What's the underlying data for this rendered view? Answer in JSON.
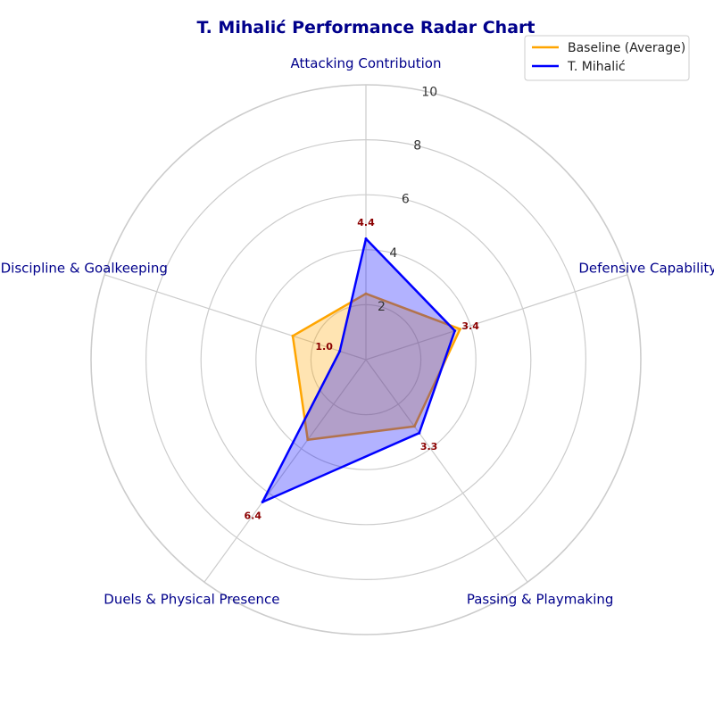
{
  "chart_data": {
    "type": "radar",
    "title": "T. Mihalić Performance Radar Chart",
    "axes": [
      "Attacking Contribution",
      "Defensive Capability",
      "Passing & Playmaking",
      "Duels & Physical Presence",
      "Discipline & Goalkeeping"
    ],
    "rlim": [
      0,
      10
    ],
    "radial_ticks": [
      2,
      4,
      6,
      8,
      10
    ],
    "grid": true,
    "legend_position": "top-right",
    "series": [
      {
        "name": "Baseline (Average)",
        "values": [
          2.4,
          3.6,
          3.0,
          3.6,
          2.8
        ],
        "color": "#ffa500",
        "show_value_labels": false
      },
      {
        "name": "T. Mihalić",
        "values": [
          4.4,
          3.4,
          3.3,
          6.4,
          1.0
        ],
        "color": "#0000ff",
        "show_value_labels": true
      }
    ],
    "value_label_color": "#8b0000"
  }
}
